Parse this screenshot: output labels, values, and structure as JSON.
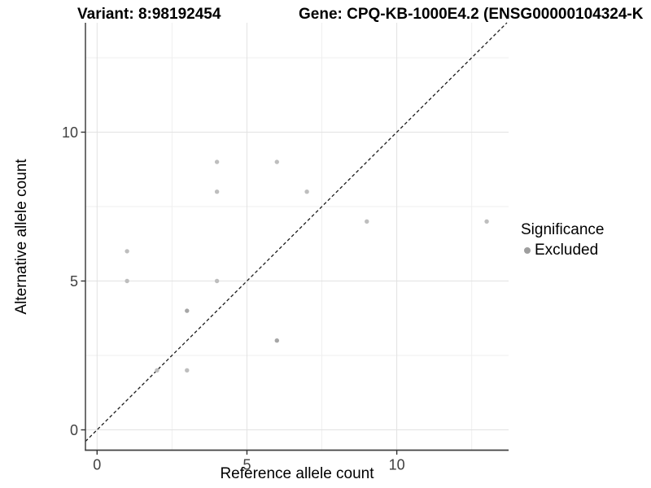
{
  "header": {
    "variant_title": "Variant: 8:98192454",
    "gene_title": "Gene: CPQ-KB-1000E4.2 (ENSG00000104324-K"
  },
  "legend": {
    "title": "Significance",
    "items": [
      {
        "label": "Excluded",
        "swatch_color": "#9e9e9e"
      }
    ]
  },
  "colors": {
    "axis_line": "#404040",
    "tick_mark": "#333333",
    "tick_label": "#404040",
    "grid_major": "#e2e2e2",
    "grid_minor": "#efefef",
    "point_gray": "#bebebe",
    "point_gray_dark": "#a6a6a6",
    "reference_line": "#1a1a1a",
    "background": "#ffffff"
  },
  "chart_data": {
    "type": "scatter",
    "title": "Variant: 8:98192454   Gene: CPQ-KB-1000E4.2 (ENSG00000104324-K… [truncated at image edge]",
    "xlabel": "Reference allele count",
    "ylabel": "Alternative allele count",
    "xlim": [
      -0.7,
      13.7
    ],
    "ylim": [
      -0.7,
      13.7
    ],
    "x_major_ticks": [
      0,
      5,
      10
    ],
    "y_major_ticks": [
      0,
      5,
      10
    ],
    "x_minor_ticks": [
      2.5,
      7.5,
      12.5
    ],
    "y_minor_ticks": [
      2.5,
      7.5,
      12.5
    ],
    "grid": "major+minor",
    "legend_position": "right",
    "legend_title": "Significance",
    "series": [
      {
        "name": "Excluded",
        "color": "#bebebe",
        "points": [
          [
            1,
            5
          ],
          [
            1,
            6
          ],
          [
            2,
            2
          ],
          [
            3,
            2
          ],
          [
            4,
            5
          ],
          [
            4,
            8
          ],
          [
            4,
            9
          ],
          [
            6,
            9
          ],
          [
            7,
            8
          ],
          [
            9,
            7
          ],
          [
            13,
            7
          ]
        ]
      },
      {
        "name": "Excluded (overplotted, darker)",
        "color": "#a6a6a6",
        "points": [
          [
            3,
            4
          ],
          [
            6,
            3
          ]
        ]
      }
    ],
    "reference_line": {
      "description": "identity line y = x",
      "style": "dashed",
      "color": "#1a1a1a"
    }
  }
}
